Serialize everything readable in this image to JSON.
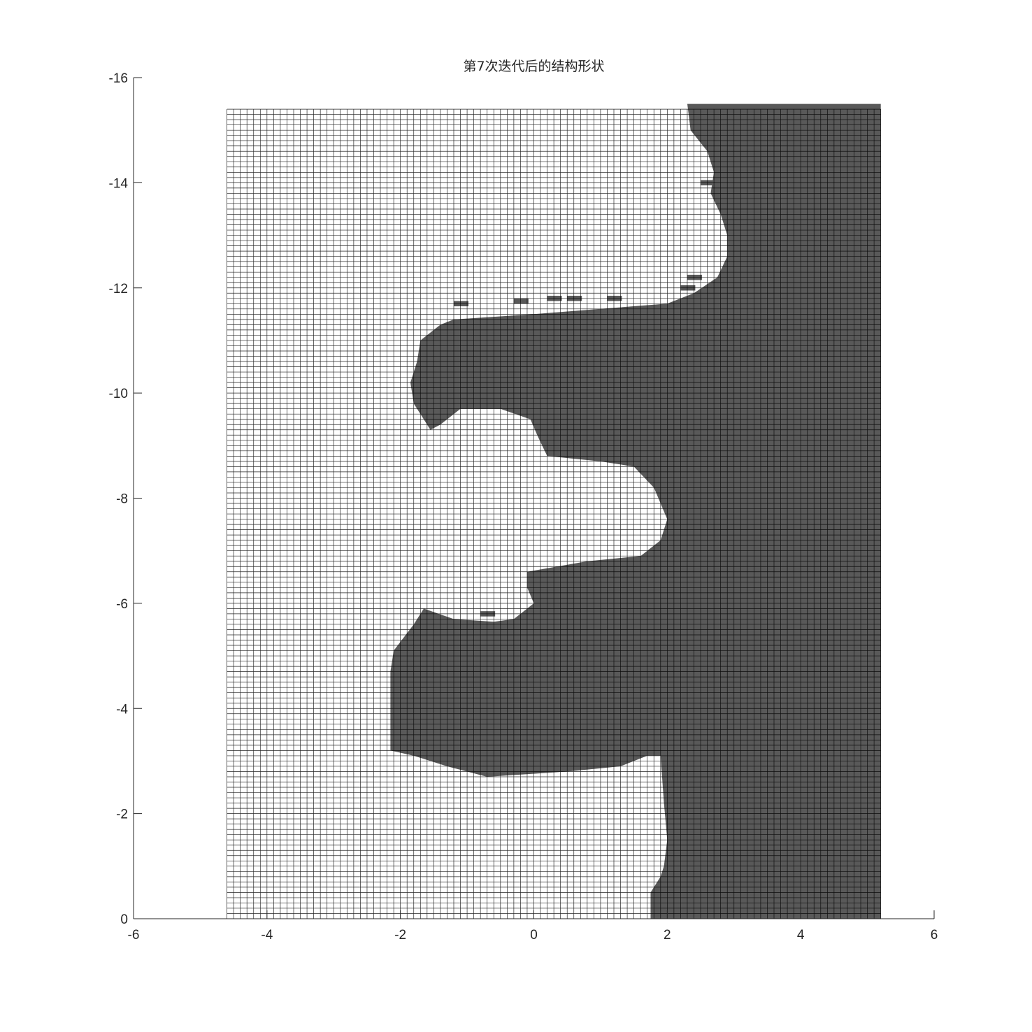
{
  "chart_data": {
    "type": "heatmap",
    "title": "第7次迭代后的结构形状",
    "xlabel": "",
    "ylabel": "",
    "xlim": [
      -6,
      6
    ],
    "ylim": [
      -16,
      0
    ],
    "y_reversed": true,
    "x_ticks": [
      "-6",
      "-4",
      "-2",
      "0",
      "2",
      "4",
      "6"
    ],
    "x_tick_values": [
      -6,
      -4,
      -2,
      0,
      2,
      4,
      6
    ],
    "y_ticks": [
      "-16",
      "-14",
      "-12",
      "-10",
      "-8",
      "-6",
      "-4",
      "-2",
      "0"
    ],
    "y_tick_values": [
      -16,
      -14,
      -12,
      -10,
      -8,
      -6,
      -4,
      -2,
      0
    ],
    "grid": false,
    "mesh": {
      "x_range": [
        -4.6,
        5.2
      ],
      "y_range": [
        -15.4,
        0
      ],
      "columns": 98,
      "rows": 154,
      "solid_color": "#595959",
      "void_color": "#ffffff",
      "edge_color": "#000000"
    },
    "solid_region_boundary": [
      [
        -15.5,
        2.3
      ],
      [
        -15.0,
        2.35
      ],
      [
        -14.6,
        2.6
      ],
      [
        -14.2,
        2.7
      ],
      [
        -13.8,
        2.65
      ],
      [
        -13.4,
        2.8
      ],
      [
        -13.0,
        2.9
      ],
      [
        -12.6,
        2.9
      ],
      [
        -12.2,
        2.75
      ],
      [
        -11.9,
        2.4
      ],
      [
        -11.7,
        2.0
      ],
      [
        -11.6,
        1.0
      ],
      [
        -11.5,
        0.0
      ],
      [
        -11.4,
        -1.2
      ],
      [
        -11.3,
        -1.4
      ],
      [
        -11.0,
        -1.7
      ],
      [
        -10.6,
        -1.75
      ],
      [
        -10.2,
        -1.85
      ],
      [
        -9.8,
        -1.8
      ],
      [
        -9.5,
        -1.65
      ],
      [
        -9.3,
        -1.55
      ],
      [
        -9.4,
        -1.4
      ],
      [
        -9.7,
        -1.1
      ],
      [
        -9.7,
        -0.5
      ],
      [
        -9.5,
        -0.05
      ],
      [
        -9.2,
        0.05
      ],
      [
        -8.8,
        0.2
      ],
      [
        -8.7,
        1.0
      ],
      [
        -8.6,
        1.5
      ],
      [
        -8.2,
        1.8
      ],
      [
        -7.6,
        2.0
      ],
      [
        -7.2,
        1.9
      ],
      [
        -6.9,
        1.6
      ],
      [
        -6.8,
        0.8
      ],
      [
        -6.6,
        -0.1
      ],
      [
        -6.3,
        -0.1
      ],
      [
        -6.0,
        0.0
      ],
      [
        -5.7,
        -0.3
      ],
      [
        -5.65,
        -0.6
      ],
      [
        -5.7,
        -1.2
      ],
      [
        -5.9,
        -1.65
      ],
      [
        -5.6,
        -1.8
      ],
      [
        -5.1,
        -2.1
      ],
      [
        -4.7,
        -2.15
      ],
      [
        -3.2,
        -2.15
      ],
      [
        -3.1,
        -1.8
      ],
      [
        -2.9,
        -1.3
      ],
      [
        -2.7,
        -0.7
      ],
      [
        -2.8,
        0.5
      ],
      [
        -2.9,
        1.3
      ],
      [
        -3.1,
        1.7
      ],
      [
        -3.1,
        1.9
      ],
      [
        -2.2,
        1.95
      ],
      [
        -1.5,
        2.0
      ],
      [
        -1.0,
        1.95
      ],
      [
        -0.8,
        1.9
      ],
      [
        -0.5,
        1.75
      ],
      [
        -0.2,
        1.75
      ],
      [
        0.0,
        1.75
      ],
      [
        0.0,
        5.2
      ],
      [
        -15.5,
        5.2
      ]
    ],
    "isolated_solid_islands": [
      [
        -11.7,
        -1.1
      ],
      [
        -11.75,
        -0.2
      ],
      [
        -11.8,
        0.3
      ],
      [
        -11.8,
        0.6
      ],
      [
        -11.8,
        1.2
      ],
      [
        -14.0,
        2.6
      ],
      [
        -12.2,
        2.4
      ],
      [
        -12.0,
        2.3
      ],
      [
        -5.8,
        -0.7
      ]
    ]
  }
}
